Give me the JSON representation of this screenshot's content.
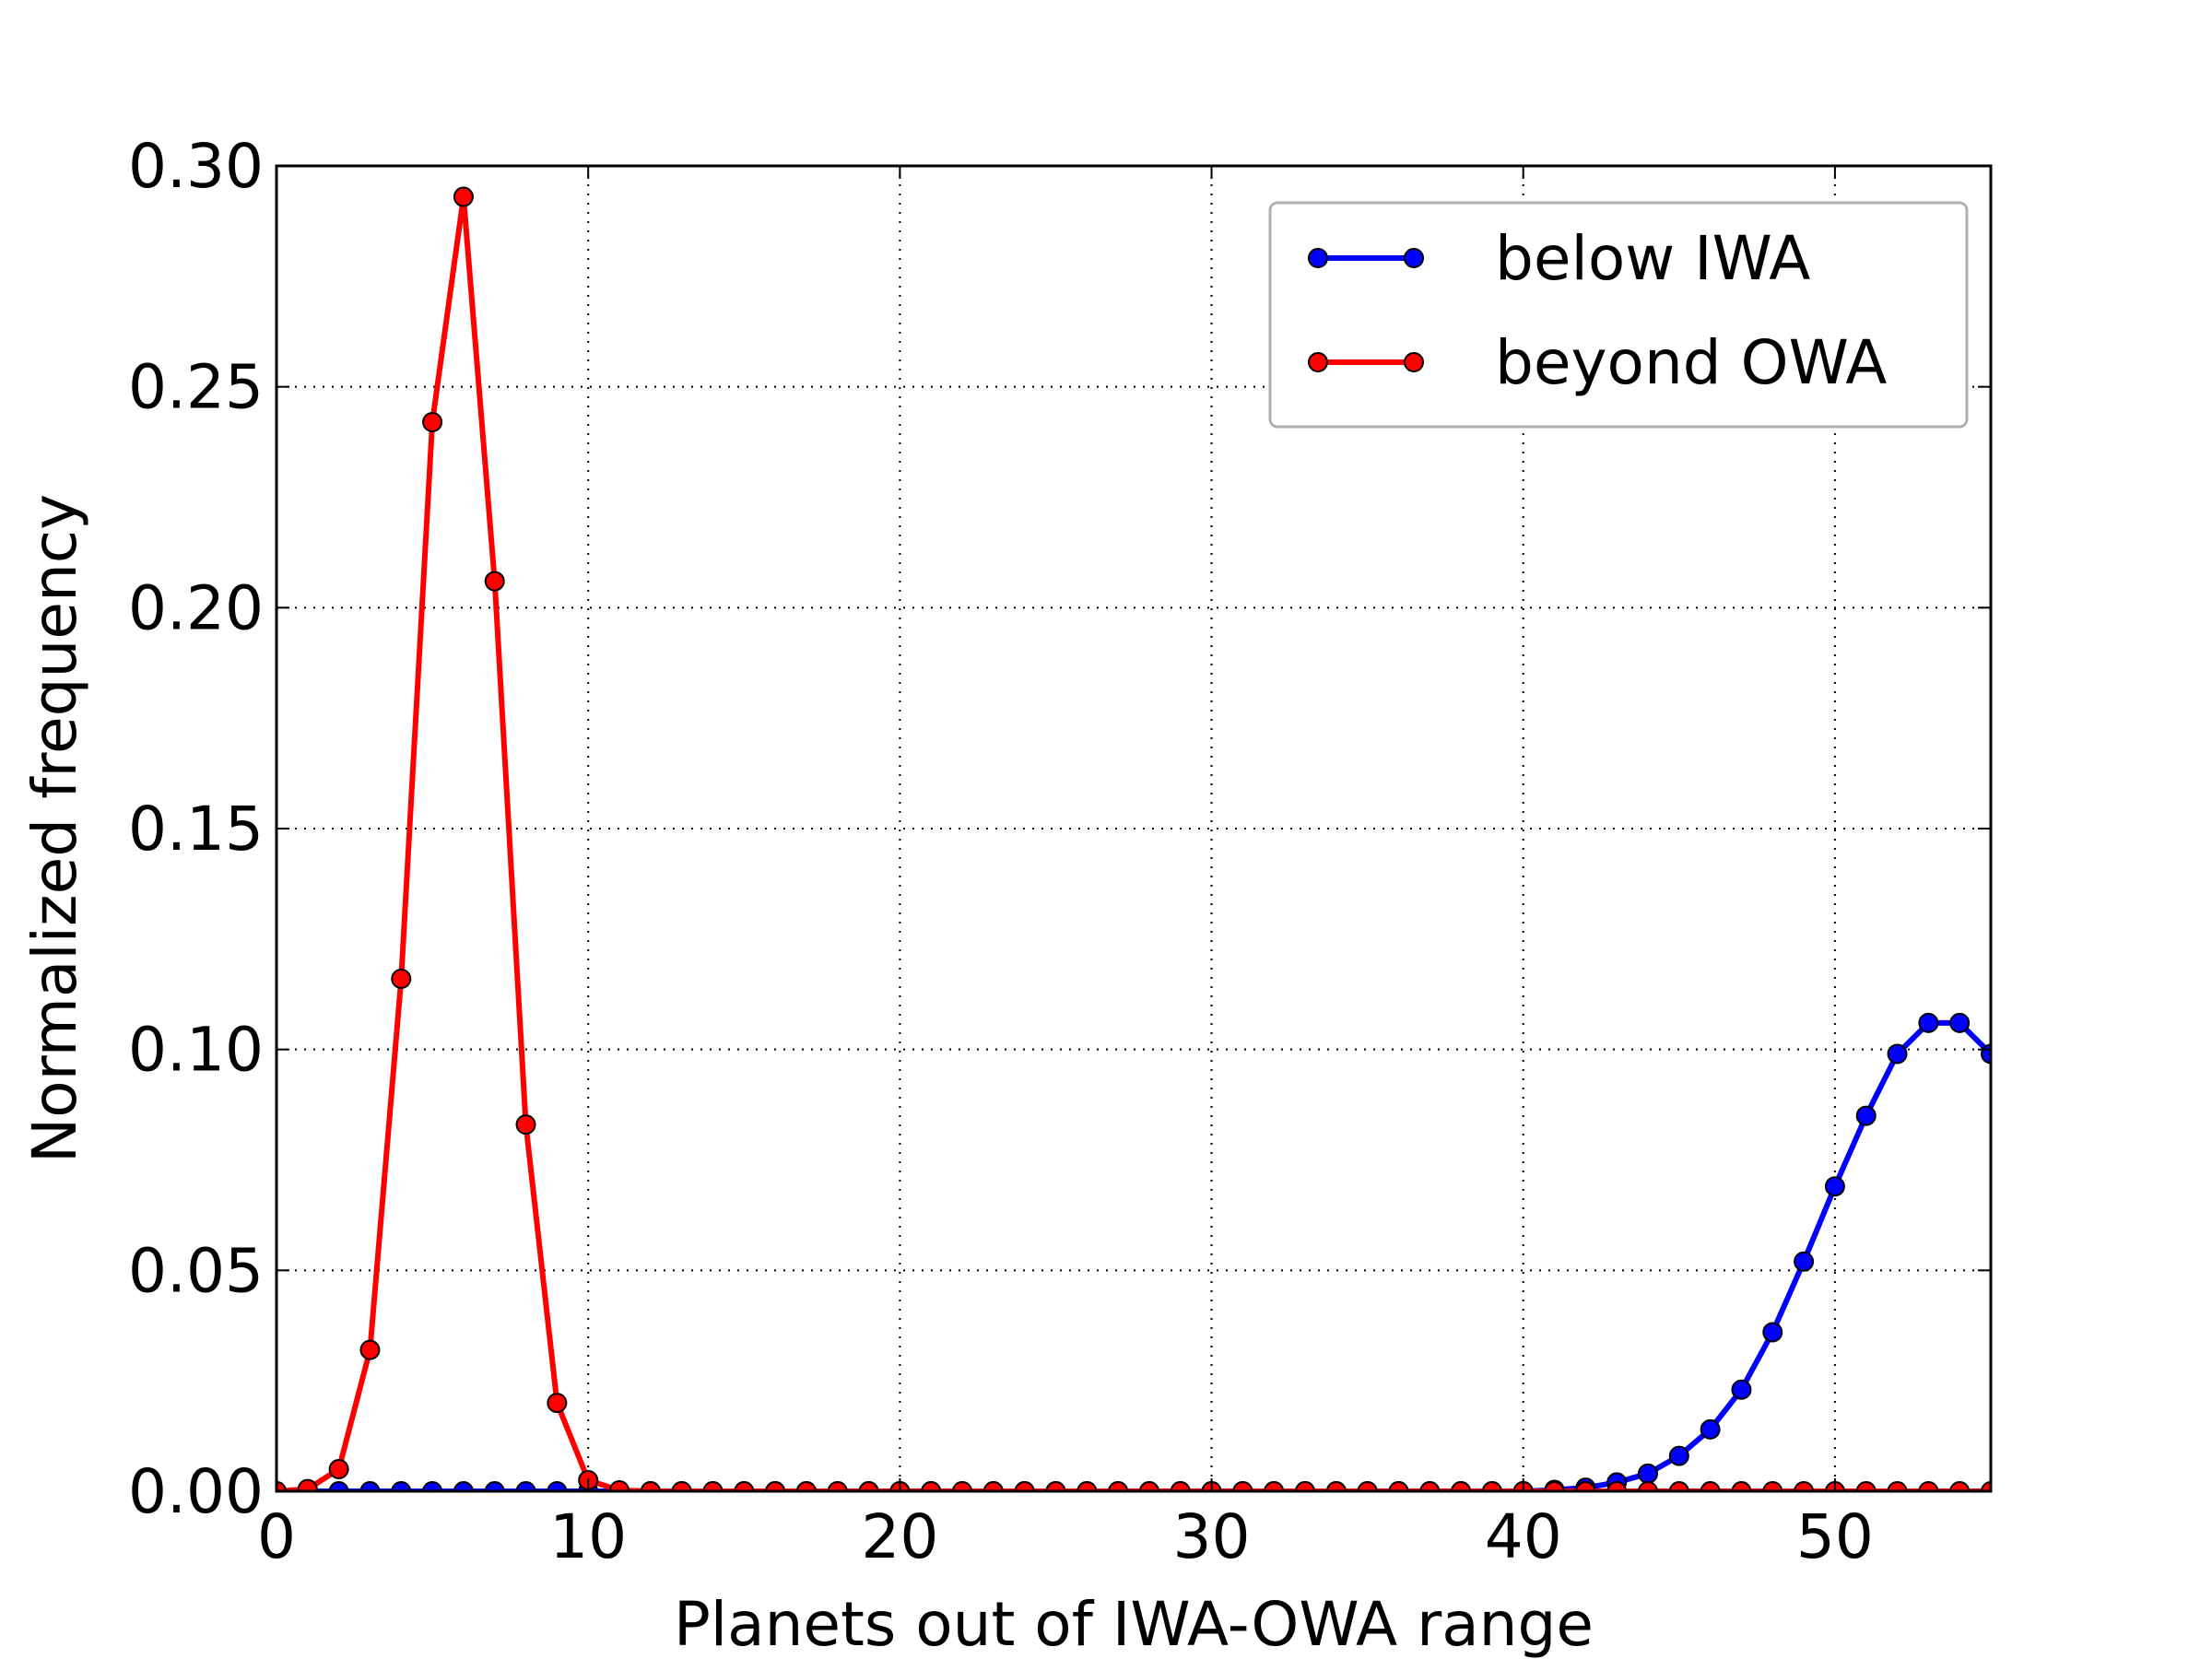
{
  "chart_data": {
    "type": "line",
    "xlabel": "Planets out of IWA-OWA range",
    "ylabel": "Normalized frequency",
    "xlim": [
      0,
      55
    ],
    "ylim": [
      0,
      0.3
    ],
    "xticks": [
      0,
      10,
      20,
      30,
      40,
      50
    ],
    "xtick_labels": [
      "0",
      "10",
      "20",
      "30",
      "40",
      "50"
    ],
    "yticks": [
      0,
      0.05,
      0.1,
      0.15,
      0.2,
      0.25,
      0.3
    ],
    "ytick_labels": [
      "0.00",
      "0.05",
      "0.10",
      "0.15",
      "0.20",
      "0.25",
      "0.30"
    ],
    "grid": true,
    "legend_position": "top-right",
    "x": [
      0,
      1,
      2,
      3,
      4,
      5,
      6,
      7,
      8,
      9,
      10,
      11,
      12,
      13,
      14,
      15,
      16,
      17,
      18,
      19,
      20,
      21,
      22,
      23,
      24,
      25,
      26,
      27,
      28,
      29,
      30,
      31,
      32,
      33,
      34,
      35,
      36,
      37,
      38,
      39,
      40,
      41,
      42,
      43,
      44,
      45,
      46,
      47,
      48,
      49,
      50,
      51,
      52,
      53,
      54,
      55
    ],
    "series": [
      {
        "name": "below IWA",
        "color": "#0000ff",
        "values": [
          0,
          0,
          0,
          0,
          0,
          0,
          0,
          0,
          0,
          0,
          0,
          0,
          0,
          0,
          0,
          0,
          0,
          0,
          0,
          0,
          0,
          0,
          0,
          0,
          0,
          0,
          0,
          0,
          0,
          0,
          0,
          0,
          0,
          0,
          0,
          0,
          0,
          0,
          0,
          0,
          0,
          0.0003,
          0.0008,
          0.002,
          0.004,
          0.008,
          0.014,
          0.023,
          0.036,
          0.052,
          0.069,
          0.085,
          0.099,
          0.106,
          0.106,
          0.099
        ]
      },
      {
        "name": "beyond OWA",
        "color": "#ff0000",
        "values": [
          0,
          0.0005,
          0.005,
          0.032,
          0.116,
          0.242,
          0.293,
          0.206,
          0.083,
          0.02,
          0.0025,
          0.0002,
          0,
          0,
          0,
          0,
          0,
          0,
          0,
          0,
          0,
          0,
          0,
          0,
          0,
          0,
          0,
          0,
          0,
          0,
          0,
          0,
          0,
          0,
          0,
          0,
          0,
          0,
          0,
          0,
          0,
          0,
          0,
          0,
          0,
          0,
          0,
          0,
          0,
          0,
          0,
          0,
          0,
          0,
          0,
          0
        ]
      }
    ]
  }
}
